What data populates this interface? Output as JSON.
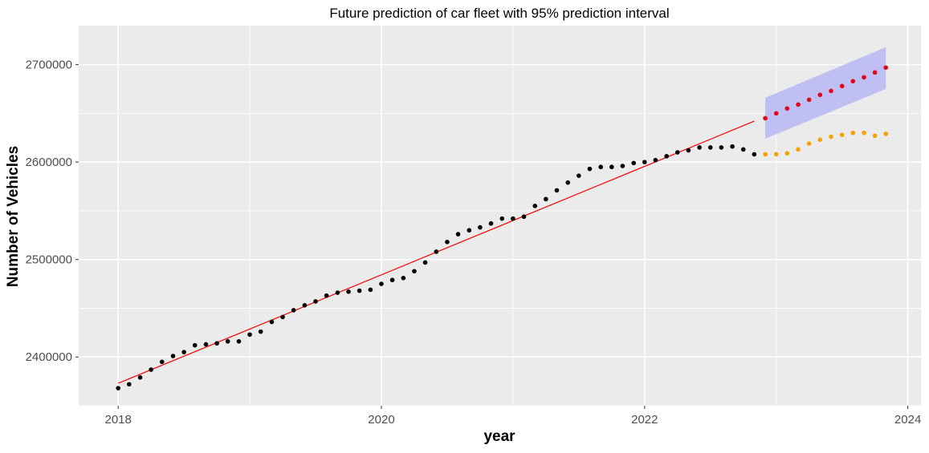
{
  "chart_data": {
    "type": "scatter",
    "title": "Future prediction of car fleet with 95% prediction interval",
    "xlabel": "year",
    "ylabel": "Number of Vehicles",
    "x_ticks": [
      2018,
      2020,
      2022,
      2024
    ],
    "y_ticks": [
      2400000,
      2500000,
      2600000,
      2700000
    ],
    "x_tick_labels": [
      "2018",
      "2020",
      "2022",
      "2024"
    ],
    "y_tick_labels": [
      "2400000",
      "2500000",
      "2600000",
      "2700000"
    ],
    "xlim": [
      2017.7,
      2024.1
    ],
    "ylim": [
      2350000,
      2740000
    ],
    "grid": true,
    "legend": "none",
    "colors": {
      "panel_background": "#EBEBEB",
      "grid": "#FFFFFF",
      "observed": "#000000",
      "trend_line": "#FF0000",
      "forecast": "#E3001B",
      "interval_fill": "#BDBDF3",
      "alternative_forecast": "#F5A100"
    },
    "series": [
      {
        "kind": "points",
        "color_key": "observed",
        "x": [
          2018.0,
          2018.083,
          2018.167,
          2018.25,
          2018.333,
          2018.417,
          2018.5,
          2018.583,
          2018.667,
          2018.75,
          2018.833,
          2018.917,
          2019.0,
          2019.083,
          2019.167,
          2019.25,
          2019.333,
          2019.417,
          2019.5,
          2019.583,
          2019.667,
          2019.75,
          2019.833,
          2019.917,
          2020.0,
          2020.083,
          2020.167,
          2020.25,
          2020.333,
          2020.417,
          2020.5,
          2020.583,
          2020.667,
          2020.75,
          2020.833,
          2020.917,
          2021.0,
          2021.083,
          2021.167,
          2021.25,
          2021.333,
          2021.417,
          2021.5,
          2021.583,
          2021.667,
          2021.75,
          2021.833,
          2021.917,
          2022.0,
          2022.083,
          2022.167,
          2022.25,
          2022.333,
          2022.417,
          2022.5,
          2022.583,
          2022.667,
          2022.75,
          2022.833
        ],
        "y": [
          2368000,
          2372000,
          2379000,
          2387000,
          2395000,
          2401000,
          2405000,
          2412000,
          2413000,
          2414000,
          2416000,
          2416000,
          2423000,
          2426000,
          2436000,
          2441000,
          2448000,
          2453000,
          2457000,
          2463000,
          2466000,
          2467000,
          2468000,
          2469000,
          2475000,
          2479000,
          2481000,
          2488000,
          2497000,
          2508000,
          2518000,
          2526000,
          2530000,
          2533000,
          2537000,
          2542000,
          2542000,
          2544000,
          2555000,
          2562000,
          2571000,
          2579000,
          2586000,
          2593000,
          2595000,
          2595000,
          2596000,
          2599000,
          2600000,
          2602000,
          2606000,
          2610000,
          2612000,
          2615000,
          2615000,
          2615000,
          2616000,
          2613000,
          2608000
        ]
      },
      {
        "kind": "line",
        "color_key": "trend_line",
        "x": [
          2018.0,
          2022.833
        ],
        "y": [
          2373000,
          2642000
        ]
      },
      {
        "kind": "band",
        "color_key": "interval_fill",
        "x": [
          2022.917,
          2023.833
        ],
        "lower": [
          2624000,
          2675000
        ],
        "upper": [
          2666000,
          2718000
        ]
      },
      {
        "kind": "points",
        "color_key": "forecast",
        "x": [
          2022.917,
          2023.0,
          2023.083,
          2023.167,
          2023.25,
          2023.333,
          2023.417,
          2023.5,
          2023.583,
          2023.667,
          2023.75,
          2023.833
        ],
        "y": [
          2645000,
          2650000,
          2655000,
          2659000,
          2664000,
          2669000,
          2673000,
          2678000,
          2683000,
          2687000,
          2692000,
          2697000
        ]
      },
      {
        "kind": "points",
        "color_key": "alternative_forecast",
        "x": [
          2022.917,
          2023.0,
          2023.083,
          2023.167,
          2023.25,
          2023.333,
          2023.417,
          2023.5,
          2023.583,
          2023.667,
          2023.75,
          2023.833
        ],
        "y": [
          2608000,
          2608000,
          2609000,
          2613000,
          2619000,
          2623000,
          2626000,
          2628000,
          2630000,
          2630000,
          2627000,
          2629000
        ]
      }
    ]
  }
}
